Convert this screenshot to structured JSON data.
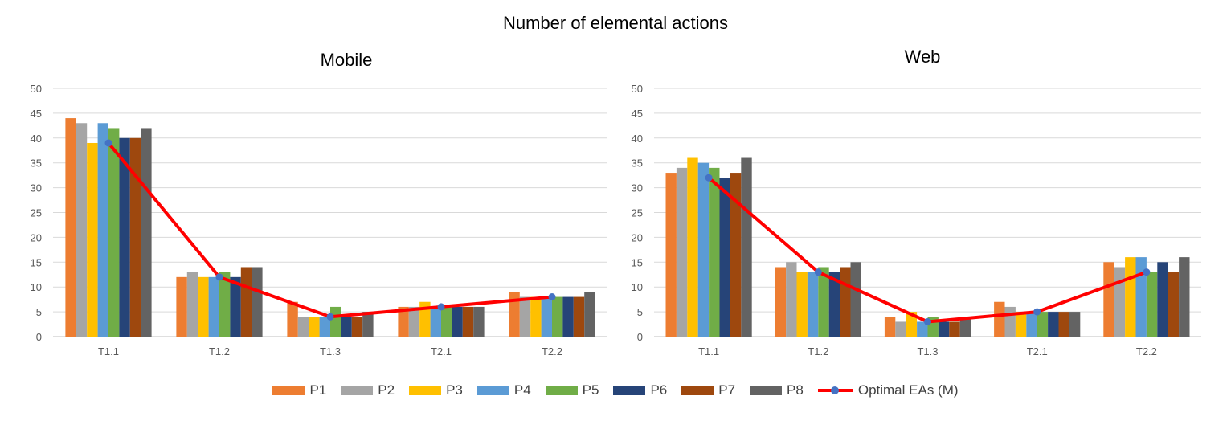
{
  "title": "Number of elemental actions",
  "colors": {
    "P1": "#ed7d31",
    "P2": "#a5a5a5",
    "P3": "#ffc000",
    "P4": "#5b9bd5",
    "P5": "#70ad47",
    "P6": "#264478",
    "P7": "#9e480e",
    "P8": "#636363",
    "optimal_line": "#ff0000",
    "optimal_marker": "#4472c4",
    "grid": "#d9d9d9"
  },
  "legend": [
    "P1",
    "P2",
    "P3",
    "P4",
    "P5",
    "P6",
    "P7",
    "P8",
    "Optimal EAs (M)"
  ],
  "chart_data": [
    {
      "type": "bar",
      "title": "Mobile",
      "categories": [
        "T1.1",
        "T1.2",
        "T1.3",
        "T2.1",
        "T2.2"
      ],
      "ylim": [
        0,
        50
      ],
      "yticks": [
        0,
        5,
        10,
        15,
        20,
        25,
        30,
        35,
        40,
        45,
        50
      ],
      "grid": true,
      "legend_position": "bottom",
      "series": [
        {
          "name": "P1",
          "values": [
            44,
            12,
            7,
            6,
            9
          ]
        },
        {
          "name": "P2",
          "values": [
            43,
            13,
            4,
            6,
            8
          ]
        },
        {
          "name": "P3",
          "values": [
            39,
            12,
            4,
            7,
            8
          ]
        },
        {
          "name": "P4",
          "values": [
            43,
            12,
            4,
            6,
            8
          ]
        },
        {
          "name": "P5",
          "values": [
            42,
            13,
            6,
            6,
            8
          ]
        },
        {
          "name": "P6",
          "values": [
            40,
            12,
            4,
            6,
            8
          ]
        },
        {
          "name": "P7",
          "values": [
            40,
            14,
            4,
            6,
            8
          ]
        },
        {
          "name": "P8",
          "values": [
            42,
            14,
            5,
            6,
            9
          ]
        }
      ],
      "line_series": {
        "name": "Optimal EAs (M)",
        "values": [
          39,
          12,
          4,
          6,
          8
        ]
      }
    },
    {
      "type": "bar",
      "title": "Web",
      "categories": [
        "T1.1",
        "T1.2",
        "T1.3",
        "T2.1",
        "T2.2"
      ],
      "ylim": [
        0,
        50
      ],
      "yticks": [
        0,
        5,
        10,
        15,
        20,
        25,
        30,
        35,
        40,
        45,
        50
      ],
      "grid": true,
      "legend_position": "bottom",
      "series": [
        {
          "name": "P1",
          "values": [
            33,
            14,
            4,
            7,
            15
          ]
        },
        {
          "name": "P2",
          "values": [
            34,
            15,
            3,
            6,
            14
          ]
        },
        {
          "name": "P3",
          "values": [
            36,
            13,
            5,
            5,
            16
          ]
        },
        {
          "name": "P4",
          "values": [
            35,
            13,
            3,
            5,
            16
          ]
        },
        {
          "name": "P5",
          "values": [
            34,
            14,
            4,
            5,
            13
          ]
        },
        {
          "name": "P6",
          "values": [
            32,
            13,
            3,
            5,
            15
          ]
        },
        {
          "name": "P7",
          "values": [
            33,
            14,
            3,
            5,
            13
          ]
        },
        {
          "name": "P8",
          "values": [
            36,
            15,
            4,
            5,
            16
          ]
        }
      ],
      "line_series": {
        "name": "Optimal EAs (M)",
        "values": [
          32,
          13,
          3,
          5,
          13
        ]
      }
    }
  ]
}
